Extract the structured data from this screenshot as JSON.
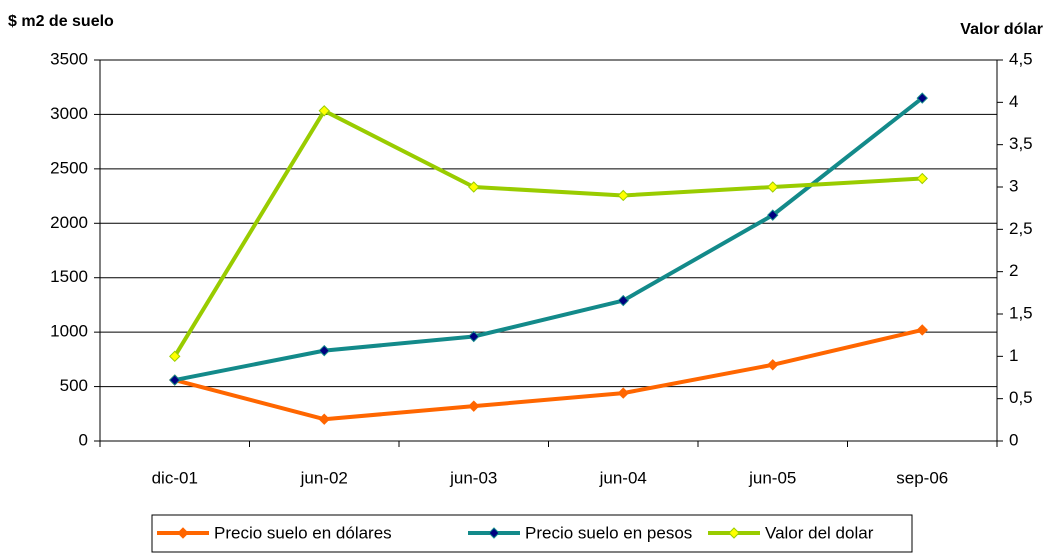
{
  "chart_data": {
    "type": "line",
    "y_label": "$ m2 de suelo",
    "y2_label": "Valor dólar",
    "categories": [
      "dic-01",
      "jun-02",
      "jun-03",
      "jun-04",
      "jun-05",
      "sep-06"
    ],
    "series": [
      {
        "name": "Precio suelo en dólares",
        "color": "#ff6600",
        "marker_color": "#ff6600",
        "values": [
          560,
          200,
          320,
          440,
          700,
          1020
        ]
      },
      {
        "name": "Precio suelo en pesos",
        "color": "#138a8a",
        "marker_color": "#000080",
        "values": [
          560,
          830,
          960,
          1290,
          2075,
          3150
        ]
      },
      {
        "name": "Valor del dolar",
        "color": "#99cc00",
        "marker_color": "#ffff00",
        "axis": "y2",
        "values": [
          1.0,
          3.9,
          3.0,
          2.9,
          3.0,
          3.1
        ]
      }
    ],
    "ylim": [
      0,
      3500
    ],
    "yticks": [
      0,
      500,
      1000,
      1500,
      2000,
      2500,
      3000,
      3500
    ],
    "y2lim": [
      0,
      4.5
    ],
    "y2ticks": [
      0,
      {
        "value": 0.5,
        "label": "0,5"
      },
      1,
      {
        "value": 1.5,
        "label": "1,5"
      },
      2,
      {
        "value": 2.5,
        "label": "2,5"
      },
      3,
      {
        "value": 3.5,
        "label": "3,5"
      },
      4,
      {
        "value": 4.5,
        "label": "4,5"
      }
    ],
    "grid": true,
    "legend": "bottom"
  }
}
